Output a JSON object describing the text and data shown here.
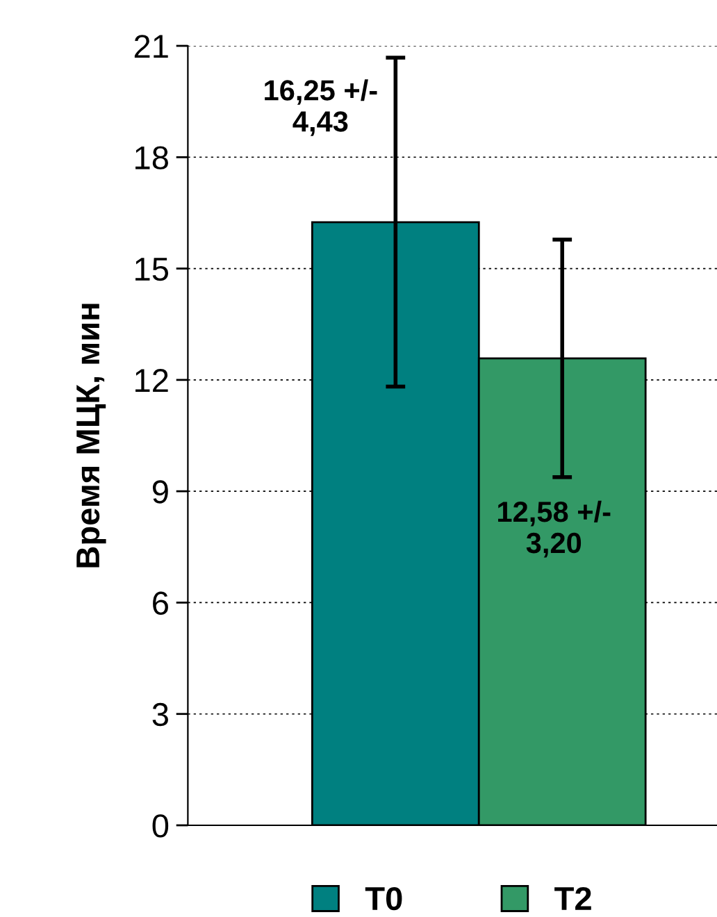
{
  "chart_data": {
    "type": "bar",
    "ylabel": "Время МЦК, мин",
    "categories": [
      null
    ],
    "series": [
      {
        "name": "T0",
        "color": "#008080",
        "values": [
          16.25
        ],
        "errors": [
          4.43
        ],
        "value_labels": [
          "16,25 +/-\n4,43"
        ]
      },
      {
        "name": "T2",
        "color": "#339966",
        "values": [
          12.58
        ],
        "errors": [
          3.2
        ],
        "value_labels": [
          "12,58 +/-\n3,20"
        ]
      }
    ],
    "ylim": [
      0,
      21
    ],
    "yticks": [
      0,
      3,
      6,
      9,
      12,
      15,
      18,
      21
    ],
    "grid": "y",
    "legend": "bottom"
  }
}
